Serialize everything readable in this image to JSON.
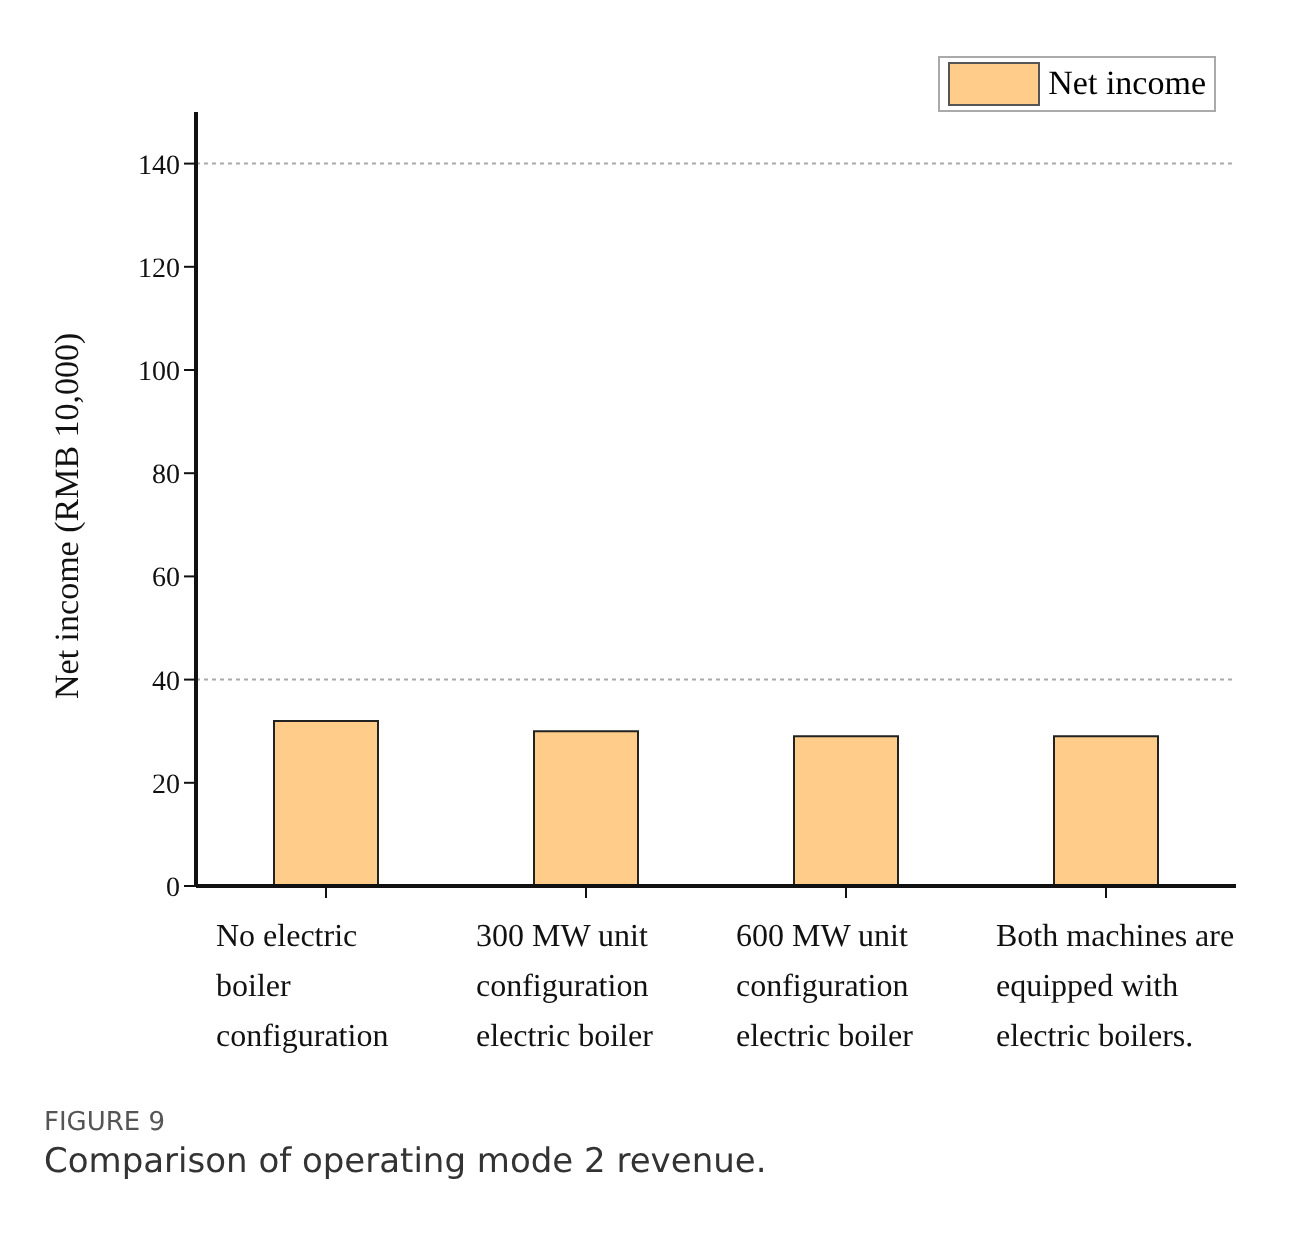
{
  "chart_data": {
    "type": "bar",
    "ylabel": "Net income (RMB 10,000)",
    "categories": [
      "No electric boiler configuration",
      "300 MW unit configuration electric boiler",
      "600 MW unit configuration electric boiler",
      "Both machines are equipped with electric boilers."
    ],
    "series": [
      {
        "name": "Net income",
        "color": "#ffcc8a",
        "values": [
          32,
          30,
          29,
          29
        ]
      }
    ],
    "ylim": [
      0,
      150
    ],
    "yticks": [
      0,
      20,
      40,
      60,
      80,
      100,
      120,
      140
    ],
    "ref_lines": [
      {
        "axis": "y",
        "value": 40,
        "color": "#aaaaaa",
        "line_style": "dotted"
      },
      {
        "axis": "y",
        "value": 140,
        "color": "#aaaaaa",
        "line_style": "dotted"
      }
    ],
    "legend": "top right",
    "annotations": [
      "FIGURE 9",
      "Comparison of operating mode 2 revenue."
    ]
  }
}
